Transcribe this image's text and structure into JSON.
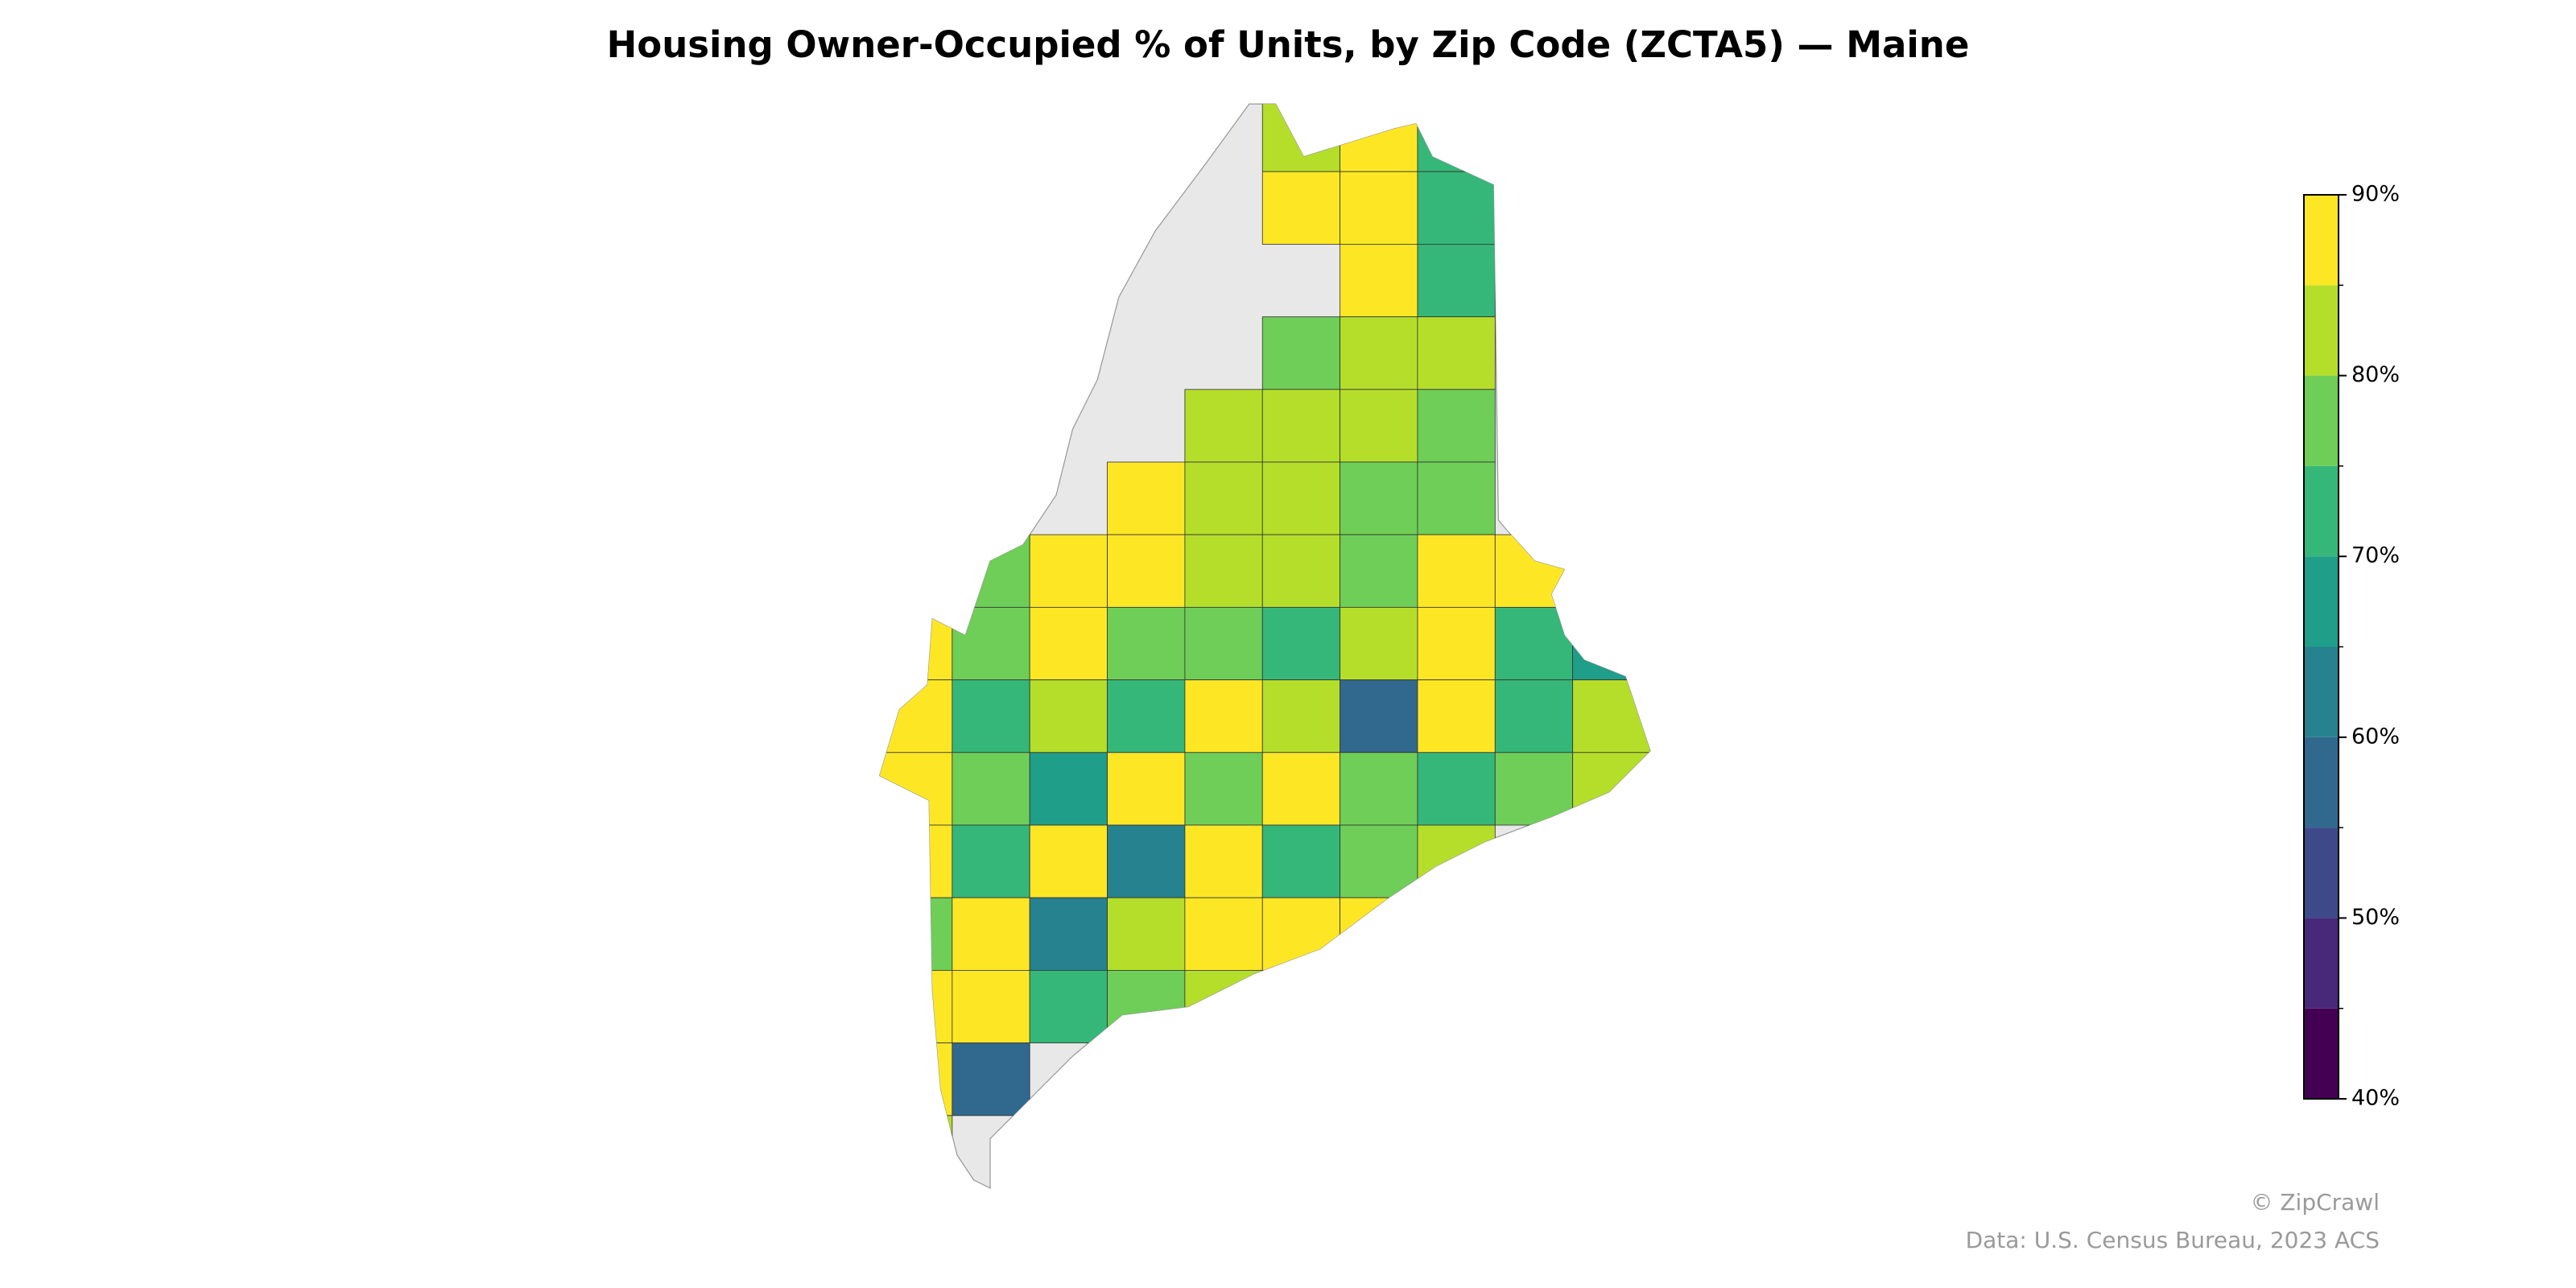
{
  "chart_data": {
    "type": "choropleth",
    "title": "Housing Owner-Occupied % of Units, by Zip Code (ZCTA5) — Maine",
    "credit": "© ZipCrawl",
    "source": "Data: U.S. Census Bureau, 2023 ACS",
    "bins": [
      40,
      45,
      50,
      55,
      60,
      65,
      70,
      75,
      80,
      85,
      90
    ],
    "colors": [
      "#440154",
      "#482878",
      "#3e4989",
      "#31688e",
      "#26828e",
      "#1f9e89",
      "#35b779",
      "#6ece58",
      "#b5de2b",
      "#fde725"
    ],
    "missing_color": "#e8e8e8",
    "clim": [
      40,
      90
    ],
    "cticks": [
      {
        "value": 40,
        "label": "40%"
      },
      {
        "value": 50,
        "label": "50%"
      },
      {
        "value": 60,
        "label": "60%"
      },
      {
        "value": 70,
        "label": "70%"
      },
      {
        "value": 80,
        "label": "80%"
      },
      {
        "value": 90,
        "label": "90%"
      }
    ],
    "values": [
      [
        null,
        null,
        null,
        null,
        null,
        80,
        85,
        70,
        null,
        null
      ],
      [
        null,
        null,
        null,
        null,
        null,
        88,
        88,
        72,
        null,
        null
      ],
      [
        null,
        null,
        null,
        null,
        null,
        null,
        88,
        72,
        null,
        null
      ],
      [
        null,
        null,
        null,
        null,
        null,
        75,
        82,
        80,
        null,
        null
      ],
      [
        null,
        null,
        null,
        null,
        82,
        82,
        84,
        75,
        null,
        null
      ],
      [
        null,
        null,
        null,
        88,
        82,
        84,
        78,
        78,
        null,
        null
      ],
      [
        null,
        78,
        88,
        88,
        82,
        80,
        75,
        88,
        88,
        null
      ],
      [
        88,
        78,
        88,
        75,
        76,
        70,
        80,
        88,
        72,
        68
      ],
      [
        88,
        72,
        80,
        70,
        85,
        80,
        55,
        88,
        72,
        80
      ],
      [
        88,
        78,
        65,
        85,
        78,
        85,
        78,
        72,
        78,
        82
      ],
      [
        88,
        70,
        85,
        62,
        85,
        72,
        78,
        82,
        null,
        null
      ],
      [
        78,
        85,
        60,
        80,
        85,
        88,
        85,
        null,
        null,
        null
      ],
      [
        85,
        88,
        72,
        78,
        80,
        null,
        null,
        null,
        null,
        null
      ],
      [
        88,
        58,
        null,
        null,
        null,
        null,
        null,
        null,
        null,
        null
      ],
      [
        82,
        null,
        null,
        null,
        null,
        null,
        null,
        null,
        null,
        null
      ]
    ]
  }
}
